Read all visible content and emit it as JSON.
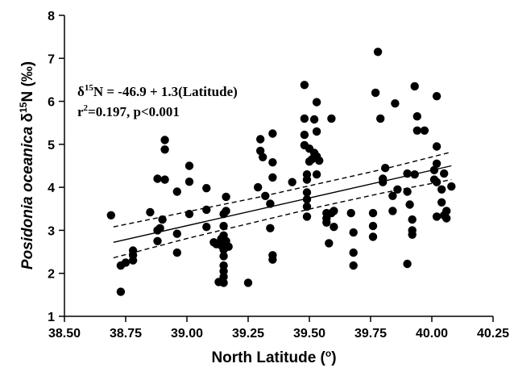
{
  "chart_data": {
    "type": "scatter",
    "x_axis": {
      "label": "North Latitude",
      "label_unit": "o",
      "min": 38.5,
      "max": 40.25,
      "ticks": [
        "38.50",
        "38.75",
        "39.00",
        "39.25",
        "39.50",
        "39.75",
        "40.00",
        "40.25"
      ]
    },
    "y_axis": {
      "label_italic": "Posidonia oceanica",
      "label_delta": "δ",
      "label_sup": "15",
      "label_rest": "N (‰)",
      "min": 1,
      "max": 8,
      "ticks": [
        "1",
        "2",
        "3",
        "4",
        "5",
        "6",
        "7",
        "8"
      ]
    },
    "annotation": {
      "line1_delta": "δ",
      "line1_sup": "15",
      "line1_rest": "N = -46.9 + 1.3(Latitude)",
      "line2_r": "r",
      "line2_sup": "2",
      "line2_rest": "=0.197, p<0.001"
    },
    "fit_line": {
      "x": [
        38.7,
        40.08
      ],
      "y": [
        2.72,
        4.5
      ]
    },
    "ci_upper": {
      "x": [
        38.7,
        39.0,
        39.3,
        39.55,
        39.8,
        40.08
      ],
      "y": [
        3.08,
        3.43,
        3.78,
        4.1,
        4.42,
        4.82
      ]
    },
    "ci_lower": {
      "x": [
        38.7,
        39.0,
        39.3,
        39.55,
        39.8,
        40.08
      ],
      "y": [
        2.36,
        2.81,
        3.22,
        3.56,
        3.87,
        4.18
      ]
    },
    "points": [
      [
        38.69,
        3.35
      ],
      [
        38.73,
        1.57
      ],
      [
        38.73,
        2.18
      ],
      [
        38.75,
        2.25
      ],
      [
        38.78,
        2.3
      ],
      [
        38.78,
        2.42
      ],
      [
        38.78,
        2.53
      ],
      [
        38.85,
        3.42
      ],
      [
        38.88,
        4.2
      ],
      [
        38.88,
        2.75
      ],
      [
        38.88,
        3.0
      ],
      [
        38.89,
        3.05
      ],
      [
        38.91,
        5.1
      ],
      [
        38.91,
        4.88
      ],
      [
        38.91,
        4.18
      ],
      [
        38.9,
        3.25
      ],
      [
        38.96,
        3.9
      ],
      [
        38.96,
        2.92
      ],
      [
        38.96,
        2.48
      ],
      [
        39.01,
        4.5
      ],
      [
        39.01,
        4.13
      ],
      [
        39.01,
        3.38
      ],
      [
        39.08,
        3.98
      ],
      [
        39.08,
        3.48
      ],
      [
        39.08,
        3.08
      ],
      [
        39.11,
        2.72
      ],
      [
        39.12,
        2.68
      ],
      [
        39.13,
        1.8
      ],
      [
        39.14,
        2.8
      ],
      [
        39.14,
        2.65
      ],
      [
        39.15,
        3.38
      ],
      [
        39.15,
        3.1
      ],
      [
        39.15,
        2.88
      ],
      [
        39.15,
        2.55
      ],
      [
        39.15,
        2.4
      ],
      [
        39.15,
        2.18
      ],
      [
        39.15,
        2.05
      ],
      [
        39.15,
        1.92
      ],
      [
        39.15,
        1.78
      ],
      [
        39.16,
        3.45
      ],
      [
        39.16,
        3.78
      ],
      [
        39.17,
        2.62
      ],
      [
        39.16,
        2.75
      ],
      [
        39.25,
        1.78
      ],
      [
        39.29,
        4.0
      ],
      [
        39.3,
        5.12
      ],
      [
        39.3,
        4.85
      ],
      [
        39.31,
        4.7
      ],
      [
        39.32,
        3.8
      ],
      [
        39.34,
        3.62
      ],
      [
        39.34,
        3.05
      ],
      [
        39.35,
        5.25
      ],
      [
        39.35,
        4.58
      ],
      [
        39.35,
        4.23
      ],
      [
        39.35,
        2.42
      ],
      [
        39.35,
        2.32
      ],
      [
        39.43,
        4.12
      ],
      [
        39.48,
        6.38
      ],
      [
        39.48,
        5.6
      ],
      [
        39.48,
        5.22
      ],
      [
        39.48,
        4.98
      ],
      [
        39.49,
        4.3
      ],
      [
        39.49,
        4.18
      ],
      [
        39.49,
        3.88
      ],
      [
        39.49,
        3.72
      ],
      [
        39.49,
        3.55
      ],
      [
        39.49,
        3.32
      ],
      [
        39.5,
        4.6
      ],
      [
        39.5,
        4.9
      ],
      [
        39.51,
        4.65
      ],
      [
        39.52,
        5.58
      ],
      [
        39.52,
        4.8
      ],
      [
        39.53,
        4.72
      ],
      [
        39.53,
        5.98
      ],
      [
        39.53,
        5.3
      ],
      [
        39.54,
        4.62
      ],
      [
        39.53,
        4.3
      ],
      [
        39.57,
        3.4
      ],
      [
        39.57,
        3.18
      ],
      [
        39.57,
        3.28
      ],
      [
        39.58,
        2.7
      ],
      [
        39.59,
        5.6
      ],
      [
        39.59,
        3.4
      ],
      [
        39.6,
        3.45
      ],
      [
        39.6,
        3.08
      ],
      [
        39.67,
        3.4
      ],
      [
        39.68,
        2.48
      ],
      [
        39.68,
        2.18
      ],
      [
        39.68,
        2.95
      ],
      [
        39.76,
        3.4
      ],
      [
        39.76,
        3.1
      ],
      [
        39.76,
        2.85
      ],
      [
        39.78,
        7.15
      ],
      [
        39.77,
        6.2
      ],
      [
        39.79,
        5.6
      ],
      [
        39.8,
        4.2
      ],
      [
        39.8,
        4.12
      ],
      [
        39.81,
        4.45
      ],
      [
        39.84,
        3.8
      ],
      [
        39.84,
        3.45
      ],
      [
        39.85,
        5.95
      ],
      [
        39.86,
        3.95
      ],
      [
        39.9,
        4.32
      ],
      [
        39.9,
        3.9
      ],
      [
        39.9,
        2.22
      ],
      [
        39.91,
        3.6
      ],
      [
        39.92,
        3.0
      ],
      [
        39.92,
        2.9
      ],
      [
        39.92,
        3.25
      ],
      [
        39.93,
        6.35
      ],
      [
        39.93,
        4.3
      ],
      [
        39.94,
        5.65
      ],
      [
        39.94,
        5.32
      ],
      [
        39.97,
        5.32
      ],
      [
        40.01,
        4.4
      ],
      [
        40.01,
        4.18
      ],
      [
        40.02,
        6.12
      ],
      [
        40.02,
        4.95
      ],
      [
        40.02,
        4.12
      ],
      [
        40.02,
        3.32
      ],
      [
        40.02,
        4.55
      ],
      [
        40.04,
        3.95
      ],
      [
        40.04,
        3.65
      ],
      [
        40.05,
        4.32
      ],
      [
        40.05,
        3.35
      ],
      [
        40.06,
        3.28
      ],
      [
        40.06,
        3.45
      ],
      [
        40.08,
        4.02
      ]
    ]
  }
}
